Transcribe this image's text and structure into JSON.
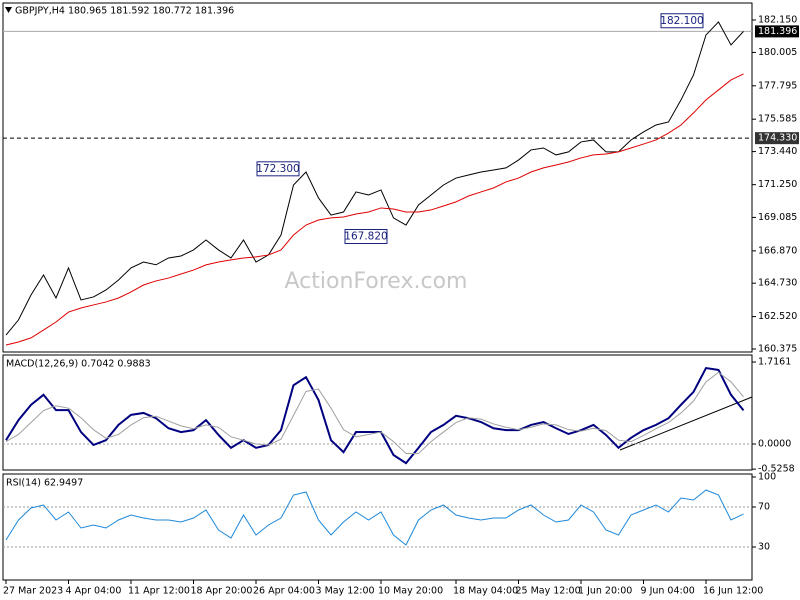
{
  "chart_data": [
    {
      "type": "line",
      "title": "GBPJPY,H4  180.965 181.592 180.772 181.396",
      "watermark": "ActionForex.com",
      "ylim": [
        160.176,
        183.275
      ],
      "yticks": [
        {
          "value": 182.15,
          "label": "182.150"
        },
        180.005,
        177.795,
        175.585,
        {
          "value": 173.44,
          "label": "173.440"
        },
        {
          "value": 171.25,
          "label": "171.250"
        },
        169.085,
        {
          "value": 166.87,
          "label": "166.870"
        },
        {
          "value": 164.73,
          "label": "164.730"
        },
        {
          "value": 162.52,
          "label": "162.520"
        },
        160.375
      ],
      "series": [
        {
          "color": "#000000",
          "values": [
            161.3,
            162.3,
            163.95,
            165.27,
            163.75,
            165.74,
            163.62,
            163.82,
            164.28,
            164.94,
            165.74,
            166.13,
            165.95,
            166.4,
            166.53,
            166.93,
            167.59,
            166.93,
            166.4,
            167.59,
            166.13,
            166.6,
            167.92,
            171.23,
            172.09,
            170.37,
            169.24,
            169.44,
            170.77,
            170.57,
            170.9,
            169.05,
            168.58,
            169.91,
            170.57,
            171.23,
            171.69,
            171.89,
            172.09,
            172.22,
            172.36,
            172.88,
            173.55,
            173.68,
            173.22,
            173.42,
            174.08,
            174.21,
            173.42,
            173.42,
            174.21,
            174.74,
            175.2,
            175.4,
            176.86,
            178.51,
            181.16,
            182.02,
            180.5,
            181.396
          ]
        },
        {
          "color": "#e00000",
          "values": [
            160.64,
            160.84,
            161.11,
            161.63,
            162.16,
            162.82,
            163.09,
            163.29,
            163.49,
            163.75,
            164.15,
            164.61,
            164.88,
            165.07,
            165.34,
            165.6,
            165.94,
            166.13,
            166.27,
            166.4,
            166.47,
            166.6,
            166.93,
            167.92,
            168.58,
            168.91,
            169.05,
            169.11,
            169.31,
            169.44,
            169.71,
            169.64,
            169.44,
            169.44,
            169.58,
            169.84,
            170.11,
            170.5,
            170.77,
            171.03,
            171.43,
            171.69,
            172.09,
            172.36,
            172.55,
            172.75,
            173.02,
            173.22,
            173.28,
            173.42,
            173.68,
            173.94,
            174.21,
            174.67,
            175.2,
            176.0,
            176.86,
            177.52,
            178.18,
            178.58
          ]
        }
      ],
      "hlines": [
        {
          "value": 181.396,
          "label": "181.396",
          "style": "solid"
        },
        {
          "value": 174.33,
          "label": "174.330",
          "style": "dashed"
        }
      ],
      "annotations": [
        {
          "value": 182.1,
          "label": "182.100"
        },
        {
          "value": 172.3,
          "label": "172.300"
        },
        {
          "value": 167.82,
          "label": "167.820"
        }
      ]
    },
    {
      "type": "line",
      "title": "MACD(12,26,9) 0.7042 0.9883",
      "ylim": [
        -0.544,
        1.863
      ],
      "yticks": [
        1.7161,
        {
          "value": 0,
          "label": "0.0000"
        },
        -0.5258
      ],
      "levels": [
        0
      ],
      "series": [
        {
          "color": "#000080",
          "values": [
            0.08,
            0.5,
            0.82,
            1.03,
            0.71,
            0.71,
            0.25,
            -0.02,
            0.08,
            0.4,
            0.61,
            0.65,
            0.54,
            0.33,
            0.25,
            0.29,
            0.5,
            0.19,
            -0.08,
            0.08,
            -0.08,
            -0.02,
            0.29,
            1.23,
            1.4,
            0.92,
            0.08,
            -0.17,
            0.25,
            0.25,
            0.25,
            -0.23,
            -0.4,
            -0.08,
            0.25,
            0.4,
            0.59,
            0.54,
            0.46,
            0.33,
            0.29,
            0.29,
            0.4,
            0.46,
            0.33,
            0.21,
            0.29,
            0.4,
            0.19,
            -0.08,
            0.13,
            0.29,
            0.4,
            0.54,
            0.82,
            1.09,
            1.59,
            1.55,
            1.03,
            0.7042
          ]
        },
        {
          "color": "#a0a0a0",
          "values": [
            0.05,
            0.2,
            0.45,
            0.7,
            0.8,
            0.75,
            0.55,
            0.3,
            0.12,
            0.2,
            0.4,
            0.55,
            0.58,
            0.48,
            0.38,
            0.32,
            0.4,
            0.35,
            0.15,
            0.08,
            0.0,
            -0.02,
            0.1,
            0.6,
            1.1,
            1.15,
            0.75,
            0.3,
            0.15,
            0.2,
            0.25,
            0.05,
            -0.2,
            -0.2,
            0.05,
            0.25,
            0.45,
            0.55,
            0.52,
            0.42,
            0.35,
            0.3,
            0.35,
            0.42,
            0.4,
            0.3,
            0.27,
            0.33,
            0.28,
            0.08,
            0.05,
            0.18,
            0.32,
            0.45,
            0.65,
            0.9,
            1.3,
            1.5,
            1.3,
            0.9883
          ]
        }
      ]
    },
    {
      "type": "line",
      "title": "RSI(14) 62.9497",
      "ylim": [
        -3,
        103
      ],
      "yticks": [
        100,
        70,
        30
      ],
      "levels": [
        70,
        30
      ],
      "categories": [
        "27 Mar 2023",
        null,
        null,
        null,
        null,
        "4 Apr 04:00",
        null,
        null,
        null,
        null,
        "11 Apr 12:00",
        null,
        null,
        null,
        null,
        "18 Apr 20:00",
        null,
        null,
        null,
        null,
        "26 Apr 04:00",
        null,
        null,
        null,
        null,
        "3 May 12:00",
        null,
        null,
        null,
        null,
        "10 May 20:00",
        null,
        null,
        null,
        null,
        null,
        "18 May 04:00",
        null,
        null,
        null,
        null,
        "25 May 12:00",
        null,
        null,
        null,
        null,
        "1 Jun 20:00",
        null,
        null,
        null,
        null,
        "9 Jun 04:00",
        null,
        null,
        null,
        null,
        "16 Jun 12:00",
        null,
        null,
        null
      ],
      "series": [
        {
          "color": "#1e88d8",
          "values": [
            37,
            57,
            69,
            72,
            57,
            65,
            49,
            52,
            49,
            57,
            62,
            59,
            57,
            57,
            55,
            59,
            67,
            47,
            39,
            62,
            42,
            52,
            59,
            82,
            85,
            57,
            42,
            55,
            65,
            57,
            65,
            42,
            32,
            57,
            67,
            72,
            62,
            59,
            57,
            59,
            59,
            67,
            72,
            62,
            55,
            57,
            72,
            65,
            47,
            42,
            62,
            67,
            72,
            65,
            79,
            77,
            87,
            82,
            57,
            62.9497
          ]
        }
      ]
    }
  ]
}
